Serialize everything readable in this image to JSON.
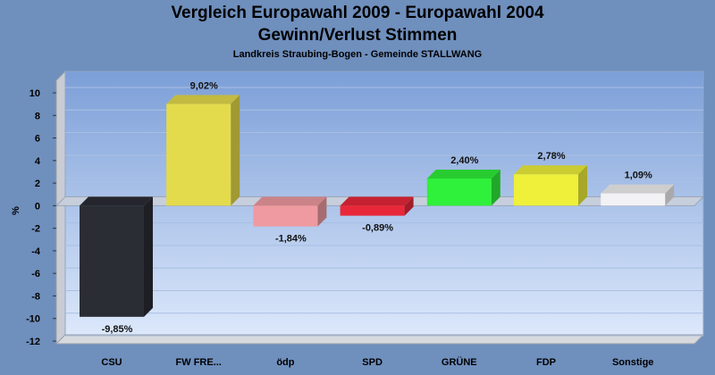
{
  "chart_data": {
    "type": "bar",
    "title": "Vergleich Europawahl 2009 - Europawahl 2004",
    "subtitle": "Gewinn/Verlust Stimmen",
    "subsubtitle": "Landkreis Straubing-Bogen - Gemeinde STALLWANG",
    "ylabel": "%",
    "ylim": [
      -12,
      10
    ],
    "yticks": [
      "10",
      "8",
      "6",
      "4",
      "2",
      "0",
      "-2",
      "-4",
      "-6",
      "-8",
      "-10",
      "-12"
    ],
    "grid": true,
    "categories": [
      "CSU",
      "FW FRE...",
      "ödp",
      "SPD",
      "GRÜNE",
      "FDP",
      "Sonstige"
    ],
    "values": [
      -9.85,
      9.02,
      -1.84,
      -0.89,
      2.4,
      2.78,
      1.09
    ],
    "value_labels": [
      "-9,85%",
      "9,02%",
      "-1,84%",
      "-0,89%",
      "2,40%",
      "2,78%",
      "1,09%"
    ],
    "colors": [
      "#2b2d35",
      "#e4db4c",
      "#ef9aa0",
      "#e8283a",
      "#2ff03a",
      "#eef03a",
      "#f2f2f4"
    ]
  }
}
